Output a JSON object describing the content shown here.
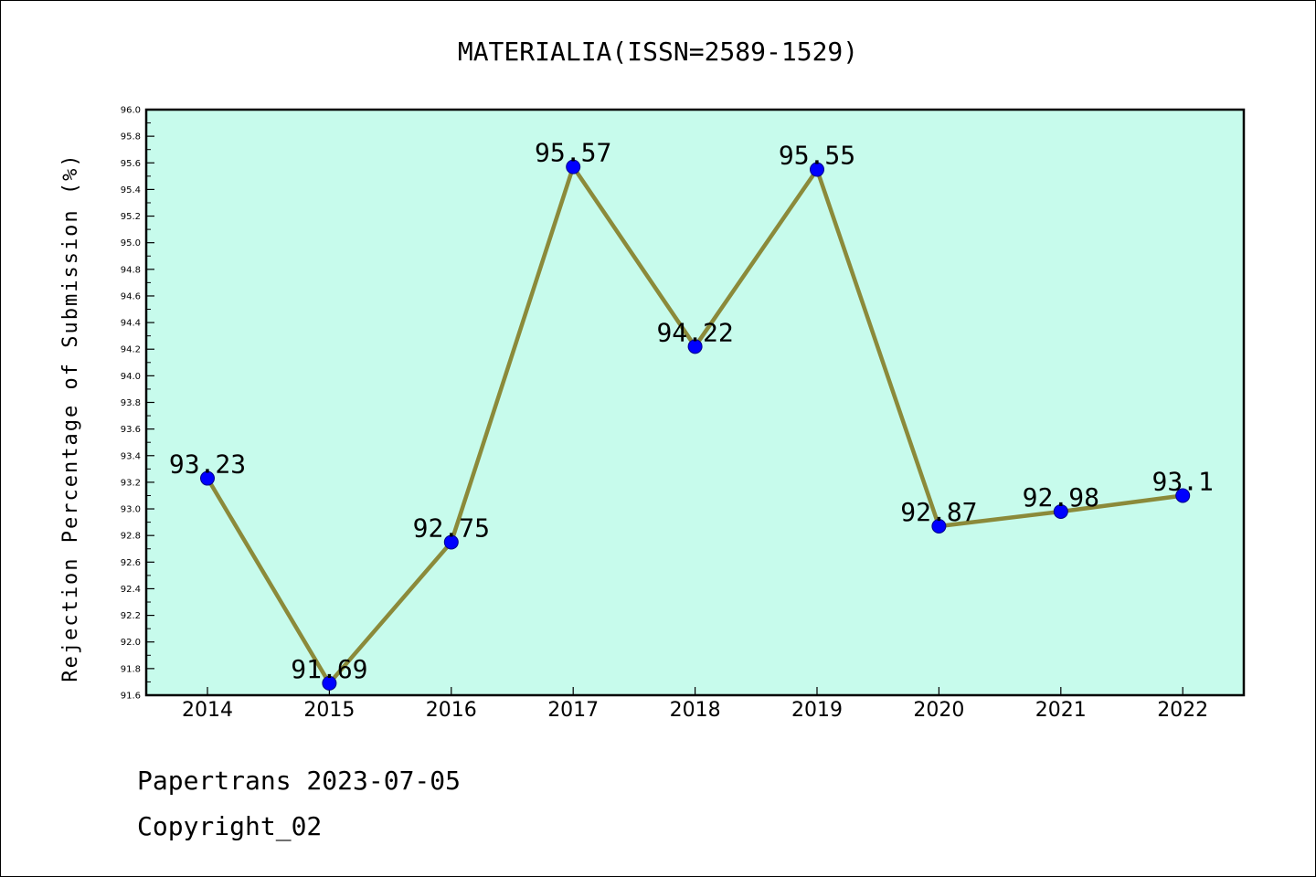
{
  "chart_data": {
    "type": "line",
    "title": "MATERIALIA(ISSN=2589-1529)",
    "xlabel": "",
    "ylabel": "Rejection Percentage of Submission (%)",
    "categories": [
      "2014",
      "2015",
      "2016",
      "2017",
      "2018",
      "2019",
      "2020",
      "2021",
      "2022"
    ],
    "values": [
      93.23,
      91.69,
      92.75,
      95.57,
      94.22,
      95.55,
      92.87,
      92.98,
      93.1
    ],
    "data_labels": [
      "93.23",
      "91.69",
      "92.75",
      "95.57",
      "94.22",
      "95.55",
      "92.87",
      "92.98",
      "93.1"
    ],
    "ylim": [
      91.6,
      96.0
    ],
    "yticks": [
      "91.6",
      "91.8",
      "92.0",
      "92.2",
      "92.4",
      "92.6",
      "92.8",
      "93.0",
      "93.2",
      "93.4",
      "93.6",
      "93.8",
      "94.0",
      "94.2",
      "94.4",
      "94.6",
      "94.8",
      "95.0",
      "95.2",
      "95.4",
      "95.6",
      "95.8",
      "96.0"
    ],
    "grid": false,
    "colors": {
      "plot_background": "#c7fbec",
      "line": "#8b8a3a",
      "marker": "#0000ff"
    }
  },
  "footer": {
    "line1": "Papertrans 2023-07-05",
    "line2": "Copyright_02"
  }
}
